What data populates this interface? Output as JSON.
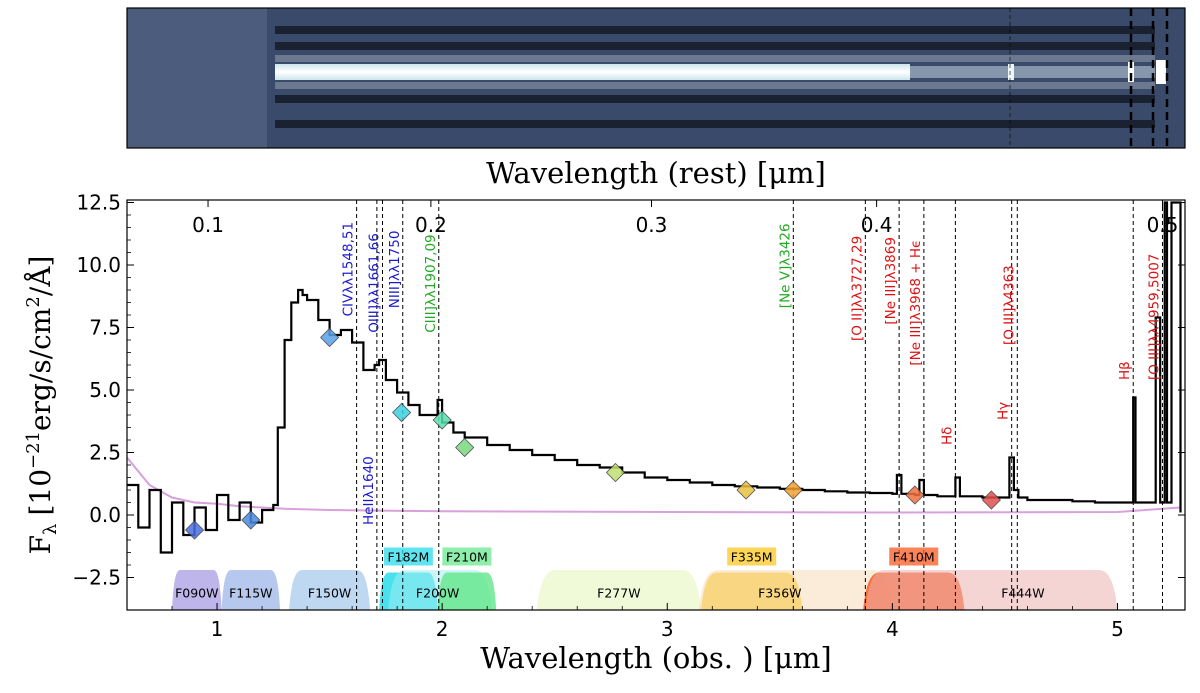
{
  "chart_data": [
    {
      "type": "image",
      "name": "2D spectrum",
      "xlabel": "Wavelength (rest) [μm]",
      "xlim": [
        0.6,
        5.3
      ]
    },
    {
      "type": "line",
      "title": "",
      "xlabel": "Wavelength (obs. ) [μm]",
      "ylabel": "F_λ [10^-21 erg/s/cm^2/Å]",
      "ylabel_parts": {
        "prefix": "F",
        "sub": "λ",
        "open": "[10",
        "exp1": "−21",
        "unit": "erg/s/cm",
        "exp2": "2",
        "tail": "/Å]"
      },
      "xlim": [
        0.6,
        5.3
      ],
      "ylim": [
        -3.8,
        12.6
      ],
      "x_ticks": [
        1,
        2,
        3,
        4,
        5
      ],
      "x_tick_labels": [
        "1",
        "2",
        "3",
        "4",
        "5"
      ],
      "y_ticks": [
        -2.5,
        0.0,
        2.5,
        5.0,
        7.5,
        10.0,
        12.5
      ],
      "y_tick_labels": [
        "−2.5",
        "0.0",
        "2.5",
        "5.0",
        "7.5",
        "10.0",
        "12.5"
      ],
      "rest_ticks": [
        {
          "label": "0.1",
          "x": 0.96
        },
        {
          "label": "0.2",
          "x": 1.95
        },
        {
          "label": "0.3",
          "x": 2.93
        },
        {
          "label": "0.4",
          "x": 3.93
        },
        {
          "label": "0.5",
          "x": 5.2
        }
      ],
      "series": [
        {
          "name": "spectrum",
          "color": "#000000",
          "x": [
            0.6,
            0.65,
            0.7,
            0.75,
            0.8,
            0.85,
            0.9,
            0.95,
            1.0,
            1.05,
            1.1,
            1.15,
            1.2,
            1.25,
            1.27,
            1.3,
            1.33,
            1.36,
            1.38,
            1.4,
            1.45,
            1.5,
            1.55,
            1.6,
            1.65,
            1.7,
            1.72,
            1.75,
            1.8,
            1.85,
            1.9,
            1.95,
            1.98,
            2.0,
            2.05,
            2.1,
            2.2,
            2.3,
            2.4,
            2.5,
            2.6,
            2.7,
            2.8,
            2.9,
            3.0,
            3.1,
            3.2,
            3.3,
            3.4,
            3.5,
            3.6,
            3.7,
            3.8,
            3.9,
            4.0,
            4.02,
            4.04,
            4.06,
            4.1,
            4.12,
            4.14,
            4.16,
            4.2,
            4.26,
            4.28,
            4.3,
            4.4,
            4.5,
            4.52,
            4.54,
            4.56,
            4.6,
            4.7,
            4.8,
            4.9,
            5.0,
            5.05,
            5.07,
            5.08,
            5.1,
            5.15,
            5.17,
            5.19,
            5.21,
            5.22,
            5.24,
            5.28
          ],
          "y": [
            1.2,
            -0.5,
            1.0,
            -1.5,
            0.5,
            -0.8,
            0.3,
            -0.6,
            0.8,
            -0.2,
            0.5,
            -0.3,
            0.2,
            0.4,
            3.5,
            7.0,
            8.5,
            9.0,
            8.8,
            8.6,
            7.8,
            7.2,
            7.4,
            6.9,
            5.8,
            6.0,
            6.2,
            5.4,
            4.9,
            4.4,
            4.0,
            4.0,
            4.6,
            3.7,
            3.3,
            3.1,
            2.8,
            2.6,
            2.4,
            2.2,
            2.0,
            1.9,
            1.7,
            1.5,
            1.4,
            1.3,
            1.2,
            1.15,
            1.1,
            1.05,
            1.0,
            0.95,
            0.9,
            0.88,
            0.85,
            1.6,
            0.85,
            0.85,
            0.8,
            1.4,
            0.8,
            0.8,
            0.75,
            0.75,
            1.5,
            0.75,
            0.7,
            0.7,
            2.3,
            1.0,
            0.7,
            0.6,
            0.6,
            0.55,
            0.5,
            0.5,
            0.5,
            4.7,
            0.5,
            0.5,
            0.5,
            7.9,
            0.5,
            12.5,
            0.5,
            12.5,
            0.1
          ]
        },
        {
          "name": "error",
          "color": "#d8a0dc",
          "x": [
            0.6,
            0.7,
            0.8,
            0.9,
            1.0,
            1.1,
            1.2,
            1.3,
            1.5,
            2.0,
            3.0,
            4.0,
            5.0,
            5.28
          ],
          "y": [
            2.3,
            1.2,
            0.7,
            0.5,
            0.45,
            0.35,
            0.3,
            0.25,
            0.2,
            0.15,
            0.12,
            0.1,
            0.12,
            0.3
          ]
        }
      ],
      "photometry": [
        {
          "x": 0.9,
          "y": -0.6,
          "color": "#4a6ee0"
        },
        {
          "x": 1.15,
          "y": -0.2,
          "color": "#4a8be0"
        },
        {
          "x": 1.5,
          "y": 7.1,
          "color": "#5aa0e8"
        },
        {
          "x": 1.82,
          "y": 4.1,
          "color": "#3ad0e0"
        },
        {
          "x": 2.0,
          "y": 3.8,
          "color": "#5ae0b0"
        },
        {
          "x": 2.1,
          "y": 2.7,
          "color": "#7ad880"
        },
        {
          "x": 2.77,
          "y": 1.7,
          "color": "#c0e070"
        },
        {
          "x": 3.35,
          "y": 1.0,
          "color": "#e8c040"
        },
        {
          "x": 3.56,
          "y": 1.0,
          "color": "#f0a030"
        },
        {
          "x": 4.1,
          "y": 0.8,
          "color": "#f07040"
        },
        {
          "x": 4.44,
          "y": 0.6,
          "color": "#e05050"
        }
      ],
      "lines": [
        {
          "x": 1.62,
          "label": "CIVλλ1548,51",
          "color": "#1a1ad0",
          "pos": "upper"
        },
        {
          "x": 1.71,
          "label": "HeIIλ1640",
          "color": "#1a1ad0",
          "pos": "lower"
        },
        {
          "x": 1.735,
          "label": "OIII]λλ1661,66",
          "color": "#1a1ad0",
          "pos": "upper"
        },
        {
          "x": 1.825,
          "label": "NIII]λλ1750",
          "color": "#1a1ad0",
          "pos": "upper"
        },
        {
          "x": 1.985,
          "label": "CIII]λλ1907,09",
          "color": "#22aa22",
          "pos": "upper"
        },
        {
          "x": 3.56,
          "label": "[Ne V]λ3426",
          "color": "#22aa22",
          "pos": "upper"
        },
        {
          "x": 3.88,
          "label": "[O II]λλ3727,29",
          "color": "#dd1111",
          "pos": "upper"
        },
        {
          "x": 4.03,
          "label": "[Ne III]λ3869",
          "color": "#dd1111",
          "pos": "upper"
        },
        {
          "x": 4.14,
          "label": "[Ne III]λ3968 + Hϵ",
          "color": "#dd1111",
          "pos": "upper"
        },
        {
          "x": 4.28,
          "label": "Hδ",
          "color": "#dd1111",
          "pos": "upper"
        },
        {
          "x": 4.53,
          "label": "Hγ",
          "color": "#dd1111",
          "pos": "upper"
        },
        {
          "x": 4.555,
          "label": "[O III]λ4363",
          "color": "#dd1111",
          "pos": "upper"
        },
        {
          "x": 5.07,
          "label": "Hβ",
          "color": "#dd1111",
          "pos": "upper"
        },
        {
          "x": 5.2,
          "label": "[O III]λλ4959,5007",
          "color": "#dd1111",
          "pos": "upper"
        }
      ],
      "filters": [
        {
          "name": "F090W",
          "lo": 0.8,
          "hi": 1.02,
          "color": "#8878d8",
          "kind": "W"
        },
        {
          "name": "F115W",
          "lo": 1.02,
          "hi": 1.28,
          "color": "#7a9ae0",
          "kind": "W"
        },
        {
          "name": "F150W",
          "lo": 1.32,
          "hi": 1.68,
          "color": "#8ab8e8",
          "kind": "W"
        },
        {
          "name": "F182M",
          "lo": 1.72,
          "hi": 1.98,
          "color": "#2adcec",
          "kind": "M"
        },
        {
          "name": "F200W",
          "lo": 1.76,
          "hi": 2.22,
          "color": "#a0ecf0",
          "kind": "W"
        },
        {
          "name": "F210M",
          "lo": 1.98,
          "hi": 2.24,
          "color": "#6ae890",
          "kind": "M"
        },
        {
          "name": "F277W",
          "lo": 2.42,
          "hi": 3.15,
          "color": "#e4f4b8",
          "kind": "W"
        },
        {
          "name": "F335M",
          "lo": 3.15,
          "hi": 3.6,
          "color": "#fcc820",
          "kind": "M"
        },
        {
          "name": "F356W",
          "lo": 3.14,
          "hi": 4.0,
          "color": "#f6dcb8",
          "kind": "W"
        },
        {
          "name": "F410M",
          "lo": 3.87,
          "hi": 4.32,
          "color": "#f85a20",
          "kind": "M"
        },
        {
          "name": "F444W",
          "lo": 3.88,
          "hi": 5.0,
          "color": "#ecb0b0",
          "kind": "W"
        }
      ]
    }
  ]
}
